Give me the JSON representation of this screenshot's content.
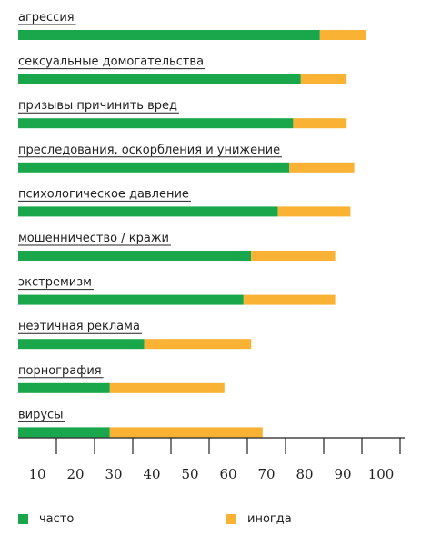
{
  "chart_data": {
    "type": "bar",
    "orientation": "horizontal",
    "stacked": true,
    "categories": [
      "агрессия",
      "сексуальные домогательства",
      "призывы причинить вред",
      "преследования, оскорбления и унижение",
      "психологическое давление",
      "мошенничество / кражи",
      "экстремизм",
      "неэтичная реклама",
      "порнография",
      "вирусы"
    ],
    "series": [
      {
        "name": "часто",
        "color": "#1aa64b",
        "values": [
          79,
          74,
          72,
          71,
          68,
          61,
          59,
          33,
          24,
          24
        ]
      },
      {
        "name": "иногда",
        "color": "#f9b233",
        "values": [
          12,
          12,
          14,
          17,
          19,
          22,
          24,
          28,
          30,
          40
        ]
      }
    ],
    "xticks": [
      10,
      20,
      30,
      40,
      50,
      60,
      70,
      80,
      90,
      100
    ],
    "xlim": [
      0,
      105
    ],
    "title": "",
    "xlabel": "",
    "ylabel": "",
    "grid": false,
    "legend": "bottom"
  }
}
